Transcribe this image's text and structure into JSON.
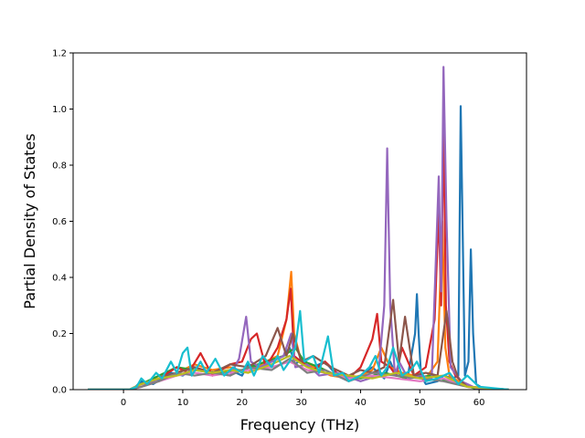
{
  "chart_data": {
    "type": "line",
    "title": "",
    "xlabel": "Frequency (THz)",
    "ylabel": "Partial Density of States",
    "xlim": [
      -8.5,
      68
    ],
    "ylim": [
      0,
      1.2
    ],
    "xticks": [
      "0",
      "10",
      "20",
      "30",
      "40",
      "50",
      "60"
    ],
    "yticks": [
      "0.0",
      "0.2",
      "0.4",
      "0.6",
      "0.8",
      "1.0",
      "1.2"
    ],
    "grid": false,
    "legend": "none",
    "colors": [
      "#1f77b4",
      "#ff7f0e",
      "#2ca02c",
      "#d62728",
      "#9467bd",
      "#8c564b",
      "#e377c2",
      "#7f7f7f",
      "#bcbd22",
      "#17becf"
    ],
    "series": [
      {
        "color": "#1f77b4",
        "x": [
          -6,
          1,
          2,
          3,
          5,
          8,
          10,
          12,
          15,
          18,
          20,
          21,
          23,
          25,
          27,
          28,
          29,
          30,
          32,
          34,
          36,
          38,
          40,
          42,
          44,
          45,
          46,
          48,
          49.2,
          49.5,
          49.8,
          50.2,
          51,
          53,
          54,
          55.5,
          56.5,
          56.9,
          57.2,
          57.6,
          58.2,
          58.6,
          59,
          59.5,
          61,
          65
        ],
        "y": [
          0,
          0,
          0.01,
          0.03,
          0.02,
          0.06,
          0.05,
          0.08,
          0.06,
          0.07,
          0.05,
          0.09,
          0.08,
          0.1,
          0.12,
          0.15,
          0.09,
          0.11,
          0.08,
          0.1,
          0.05,
          0.03,
          0.05,
          0.08,
          0.04,
          0.1,
          0.05,
          0.05,
          0.2,
          0.34,
          0.2,
          0.05,
          0.02,
          0.03,
          0.05,
          0.04,
          0.05,
          1.01,
          0.6,
          0.05,
          0.1,
          0.5,
          0.2,
          0.02,
          0,
          0
        ]
      },
      {
        "color": "#ff7f0e",
        "x": [
          -6,
          1,
          3,
          6,
          9,
          12,
          15,
          18,
          21,
          24,
          26,
          27.5,
          28.3,
          28.8,
          30,
          32,
          35,
          38,
          40,
          42,
          43.5,
          45,
          47,
          49,
          51,
          53,
          53.8,
          54.3,
          55,
          58,
          65
        ],
        "y": [
          0,
          0,
          0.02,
          0.04,
          0.06,
          0.09,
          0.07,
          0.08,
          0.06,
          0.1,
          0.12,
          0.25,
          0.42,
          0.2,
          0.1,
          0.08,
          0.05,
          0.04,
          0.05,
          0.07,
          0.15,
          0.08,
          0.06,
          0.05,
          0.04,
          0.1,
          0.6,
          0.15,
          0.05,
          0.01,
          0
        ]
      },
      {
        "color": "#2ca02c",
        "x": [
          -6,
          1,
          3,
          6,
          9,
          12,
          16,
          20,
          24,
          27,
          29,
          30.5,
          33,
          36,
          40,
          44,
          48,
          52,
          55,
          60,
          65
        ],
        "y": [
          0,
          0,
          0.02,
          0.05,
          0.08,
          0.07,
          0.06,
          0.07,
          0.1,
          0.12,
          0.15,
          0.1,
          0.08,
          0.05,
          0.04,
          0.06,
          0.04,
          0.05,
          0.03,
          0,
          0
        ]
      },
      {
        "color": "#d62728",
        "x": [
          -6,
          1,
          3,
          6,
          9,
          11,
          13,
          15,
          18,
          20,
          21.5,
          22.5,
          24,
          26,
          27.5,
          28.2,
          28.8,
          30,
          32,
          34,
          36,
          38,
          40,
          42,
          42.8,
          43.5,
          45,
          46,
          47,
          49,
          51,
          52.5,
          53.2,
          53.6,
          54,
          54.4,
          55,
          56,
          58,
          65
        ],
        "y": [
          0,
          0,
          0.02,
          0.04,
          0.08,
          0.06,
          0.13,
          0.05,
          0.09,
          0.1,
          0.18,
          0.2,
          0.08,
          0.15,
          0.25,
          0.36,
          0.12,
          0.1,
          0.07,
          0.1,
          0.06,
          0.04,
          0.08,
          0.18,
          0.27,
          0.1,
          0.08,
          0.05,
          0.15,
          0.05,
          0.08,
          0.25,
          0.64,
          0.3,
          0.98,
          0.3,
          0.1,
          0.05,
          0.01,
          0
        ]
      },
      {
        "color": "#9467bd",
        "x": [
          -6,
          1,
          3,
          6,
          9,
          12,
          15,
          18,
          19.5,
          20.7,
          21.5,
          23,
          25,
          27,
          28.3,
          29,
          31,
          33,
          36,
          40,
          43,
          44,
          44.5,
          45,
          45.8,
          46.5,
          48,
          50,
          52,
          53.2,
          53.6,
          54,
          54.5,
          55.2,
          57,
          60,
          65
        ],
        "y": [
          0,
          0,
          0.01,
          0.04,
          0.05,
          0.07,
          0.06,
          0.05,
          0.11,
          0.26,
          0.1,
          0.08,
          0.1,
          0.12,
          0.2,
          0.08,
          0.09,
          0.05,
          0.06,
          0.03,
          0.05,
          0.3,
          0.86,
          0.3,
          0.05,
          0.1,
          0.04,
          0.05,
          0.04,
          0.76,
          0.35,
          1.15,
          0.6,
          0.08,
          0.03,
          0,
          0
        ]
      },
      {
        "color": "#8c564b",
        "x": [
          -6,
          1,
          3,
          6,
          9,
          12,
          15,
          18,
          21,
          24,
          26,
          27.5,
          28.6,
          30,
          32,
          35,
          38,
          40,
          42,
          44,
          45.5,
          46.5,
          47.5,
          49,
          51,
          53,
          54.5,
          55.5,
          56.5,
          58,
          65
        ],
        "y": [
          0,
          0,
          0.02,
          0.04,
          0.06,
          0.08,
          0.06,
          0.09,
          0.08,
          0.12,
          0.22,
          0.12,
          0.2,
          0.1,
          0.12,
          0.08,
          0.05,
          0.07,
          0.06,
          0.08,
          0.32,
          0.1,
          0.26,
          0.05,
          0.06,
          0.05,
          0.28,
          0.1,
          0.04,
          0.01,
          0
        ]
      },
      {
        "color": "#e377c2",
        "x": [
          -6,
          1,
          3,
          6,
          9,
          12,
          15,
          18,
          21,
          25,
          28,
          31,
          34,
          38,
          42,
          46,
          50,
          54,
          58,
          65
        ],
        "y": [
          0,
          0,
          0.01,
          0.03,
          0.05,
          0.06,
          0.05,
          0.06,
          0.07,
          0.08,
          0.1,
          0.07,
          0.06,
          0.04,
          0.05,
          0.04,
          0.03,
          0.04,
          0.01,
          0
        ]
      },
      {
        "color": "#7f7f7f",
        "x": [
          -6,
          1,
          3,
          6,
          9,
          12,
          15,
          18,
          21,
          25,
          28,
          31,
          34,
          38,
          42,
          46,
          50,
          54,
          58,
          65
        ],
        "y": [
          0,
          0,
          0.01,
          0.03,
          0.06,
          0.05,
          0.06,
          0.05,
          0.08,
          0.07,
          0.11,
          0.06,
          0.07,
          0.03,
          0.06,
          0.05,
          0.04,
          0.03,
          0.01,
          0
        ]
      },
      {
        "color": "#bcbd22",
        "x": [
          -6,
          1,
          3,
          6,
          9,
          12,
          15,
          18,
          21,
          25,
          28,
          31,
          34,
          38,
          42,
          46,
          50,
          54,
          58,
          65
        ],
        "y": [
          0,
          0,
          0.02,
          0.04,
          0.05,
          0.07,
          0.06,
          0.07,
          0.06,
          0.09,
          0.12,
          0.08,
          0.06,
          0.05,
          0.04,
          0.06,
          0.04,
          0.05,
          0.01,
          0
        ]
      },
      {
        "color": "#17becf",
        "x": [
          -6,
          1,
          2.2,
          3,
          4,
          5.5,
          6.5,
          8,
          9,
          10,
          10.8,
          11.5,
          13,
          14,
          15.5,
          17,
          18.5,
          20,
          21,
          22,
          23.5,
          25,
          26,
          27,
          28,
          29,
          29.8,
          30.5,
          32,
          33,
          34.5,
          35.5,
          37,
          38,
          40,
          41.5,
          42.5,
          43.5,
          44.5,
          45.5,
          47,
          48.5,
          49.5,
          51,
          53,
          55,
          56.5,
          58,
          60,
          65
        ],
        "y": [
          0,
          0,
          0.01,
          0.04,
          0.02,
          0.06,
          0.04,
          0.1,
          0.06,
          0.13,
          0.15,
          0.05,
          0.1,
          0.06,
          0.11,
          0.05,
          0.08,
          0.06,
          0.1,
          0.05,
          0.12,
          0.08,
          0.12,
          0.07,
          0.1,
          0.15,
          0.28,
          0.1,
          0.12,
          0.06,
          0.19,
          0.05,
          0.06,
          0.03,
          0.05,
          0.08,
          0.12,
          0.05,
          0.08,
          0.15,
          0.05,
          0.07,
          0.1,
          0.03,
          0.04,
          0.06,
          0.02,
          0.05,
          0.01,
          0
        ]
      }
    ]
  }
}
